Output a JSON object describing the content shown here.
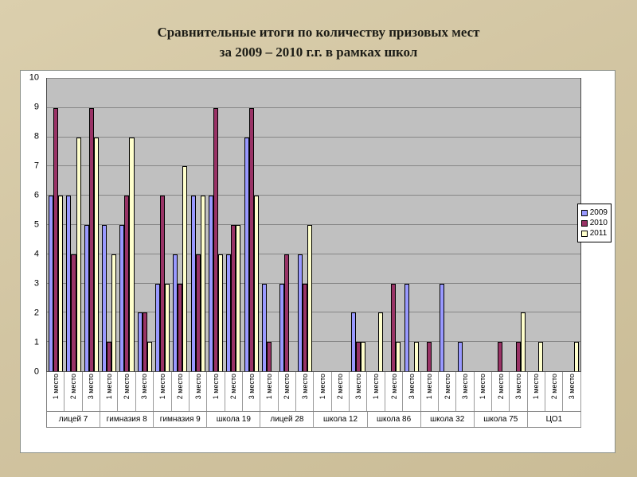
{
  "slide": {
    "background_color": "#d2c5a2"
  },
  "chart_data": {
    "type": "bar",
    "title": "Сравнительные итоги по количеству призовых мест за 2009 – 2010 г.г. в рамках школ",
    "title_lines": [
      "Сравнительные итоги по количеству призовых мест",
      "за 2009 – 2010 г.г. в рамках школ"
    ],
    "xlabel": "",
    "ylabel": "",
    "ylim": [
      0,
      10
    ],
    "yticks": [
      0,
      1,
      2,
      3,
      4,
      5,
      6,
      7,
      8,
      9,
      10
    ],
    "grid": true,
    "plot_background": "#c0c0c0",
    "legend_position": "right",
    "groups": [
      "лицей 7",
      "гимназия 8",
      "гимназия 9",
      "школа 19",
      "лицей 28",
      "школа 12",
      "школа 86",
      "школа 32",
      "школа 75",
      "ЦО1"
    ],
    "subcategories": [
      "1 место",
      "2 место",
      "3 место"
    ],
    "series": [
      {
        "name": "2009",
        "color": "#9999ff",
        "values": [
          [
            6,
            6,
            5
          ],
          [
            5,
            5,
            2
          ],
          [
            3,
            4,
            6
          ],
          [
            6,
            4,
            8
          ],
          [
            3,
            3,
            4
          ],
          [
            0,
            0,
            2
          ],
          [
            0,
            0,
            3
          ],
          [
            0,
            3,
            1
          ],
          [
            0,
            0,
            0
          ],
          [
            0,
            0,
            0
          ]
        ]
      },
      {
        "name": "2010",
        "color": "#993366",
        "values": [
          [
            9,
            4,
            9
          ],
          [
            1,
            6,
            2
          ],
          [
            6,
            3,
            4
          ],
          [
            9,
            5,
            9
          ],
          [
            1,
            4,
            3
          ],
          [
            0,
            0,
            1
          ],
          [
            0,
            3,
            0
          ],
          [
            1,
            0,
            0
          ],
          [
            0,
            1,
            1
          ],
          [
            0,
            0,
            0
          ]
        ]
      },
      {
        "name": "2011",
        "color": "#ffffcc",
        "values": [
          [
            6,
            8,
            8
          ],
          [
            4,
            8,
            1
          ],
          [
            3,
            7,
            6
          ],
          [
            4,
            5,
            6
          ],
          [
            0,
            0,
            5
          ],
          [
            0,
            0,
            1
          ],
          [
            2,
            1,
            1
          ],
          [
            0,
            0,
            0
          ],
          [
            0,
            0,
            2
          ],
          [
            1,
            0,
            1
          ]
        ]
      }
    ]
  }
}
